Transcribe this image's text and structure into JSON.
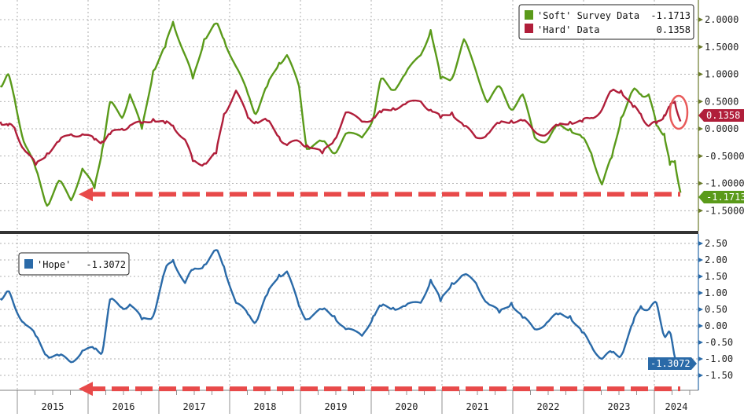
{
  "chart_data": [
    {
      "type": "line",
      "panel": "top",
      "ylim": [
        -1.75,
        2.25
      ],
      "yticks": [
        "2.0000",
        "1.5000",
        "1.0000",
        "0.5000",
        "0.0000",
        "-0.5000",
        "-1.0000",
        "-1.5000"
      ],
      "ytick_values": [
        2.0,
        1.5,
        1.0,
        0.5,
        0.0,
        -0.5,
        -1.0,
        -1.5
      ],
      "grid": true,
      "legend_placement": "top-right",
      "x": [
        2014.76,
        2014.87,
        2014.96,
        2015.09,
        2015.26,
        2015.42,
        2015.59,
        2015.76,
        2015.92,
        2016.09,
        2016.2,
        2016.31,
        2016.48,
        2016.59,
        2016.76,
        2016.92,
        2017.09,
        2017.2,
        2017.37,
        2017.48,
        2017.64,
        2017.81,
        2017.92,
        2018.09,
        2018.26,
        2018.37,
        2018.53,
        2018.7,
        2018.81,
        2018.98,
        2019.09,
        2019.31,
        2019.48,
        2019.64,
        2019.87,
        2020.03,
        2020.14,
        2020.31,
        2020.48,
        2020.7,
        2020.84,
        2020.98,
        2021.14,
        2021.31,
        2021.48,
        2021.64,
        2021.81,
        2021.98,
        2022.14,
        2022.31,
        2022.48,
        2022.64,
        2022.81,
        2022.98,
        2023.11,
        2023.26,
        2023.4,
        2023.53,
        2023.7,
        2023.81,
        2023.92,
        2024.03,
        2024.14,
        2024.22,
        2024.29,
        2024.37
      ],
      "series": [
        {
          "name": "'Soft' Survey Data",
          "last_value": "-1.1713",
          "color": "#5a9a1a",
          "values": [
            0.78,
            1.0,
            0.56,
            -0.23,
            -0.73,
            -1.41,
            -0.95,
            -1.31,
            -0.73,
            -1.09,
            -0.37,
            0.49,
            0.2,
            0.63,
            0.0,
            1.06,
            1.5,
            1.96,
            1.35,
            0.92,
            1.64,
            1.93,
            1.64,
            1.14,
            0.63,
            0.27,
            0.78,
            1.21,
            1.35,
            0.78,
            -0.37,
            -0.23,
            -0.45,
            -0.09,
            -0.16,
            0.2,
            0.92,
            0.71,
            1.0,
            1.35,
            1.81,
            0.92,
            0.92,
            1.64,
            1.06,
            0.49,
            0.78,
            0.35,
            0.63,
            -0.16,
            -0.23,
            0.06,
            0.0,
            -0.16,
            -0.45,
            -1.02,
            -0.52,
            0.2,
            0.71,
            0.63,
            0.63,
            0.06,
            -0.09,
            -0.66,
            -0.59,
            -1.1713
          ]
        },
        {
          "name": "'Hard' Data",
          "last_value": "0.1358",
          "color": "#b01e3a",
          "values": [
            0.13,
            0.06,
            0.02,
            -0.37,
            -0.66,
            -0.45,
            -0.23,
            -0.1,
            -0.1,
            -0.2,
            -0.23,
            -0.1,
            0.0,
            0.06,
            0.1,
            0.18,
            0.1,
            0.06,
            -0.2,
            -0.59,
            -0.64,
            -0.45,
            0.27,
            0.7,
            0.2,
            0.13,
            0.15,
            -0.15,
            -0.3,
            -0.23,
            -0.3,
            -0.45,
            -0.2,
            0.3,
            0.13,
            0.2,
            0.3,
            0.38,
            0.45,
            0.5,
            0.35,
            0.2,
            0.3,
            0.05,
            -0.16,
            -0.1,
            0.1,
            0.15,
            0.15,
            -0.05,
            -0.1,
            0.06,
            0.13,
            0.13,
            0.2,
            0.35,
            0.7,
            0.7,
            0.4,
            0.27,
            0.05,
            0.1,
            0.25,
            0.4,
            0.5,
            0.1358
          ]
        }
      ],
      "annotations": {
        "dashed_arrow_level": -1.1713,
        "circled_series": "'Hard' Data"
      }
    },
    {
      "type": "line",
      "panel": "bottom",
      "ylim": [
        -1.85,
        2.75
      ],
      "yticks": [
        "2.50",
        "2.00",
        "1.50",
        "1.00",
        "0.50",
        "0.00",
        "-0.50",
        "-1.00",
        "-1.50"
      ],
      "ytick_values": [
        2.5,
        2.0,
        1.5,
        1.0,
        0.5,
        0.0,
        -0.5,
        -1.0,
        -1.5
      ],
      "grid": true,
      "legend_placement": "top-left",
      "series": [
        {
          "name": "'Hope'",
          "last_value": "-1.3072",
          "color": "#2a6aa8",
          "values": [
            0.83,
            1.05,
            0.6,
            0.1,
            -0.3,
            -0.9,
            -0.9,
            -1.1,
            -0.75,
            -0.7,
            -0.8,
            0.8,
            0.55,
            0.65,
            0.2,
            0.3,
            1.7,
            2.0,
            1.3,
            1.7,
            1.85,
            2.3,
            1.8,
            0.7,
            0.35,
            0.12,
            0.95,
            1.55,
            1.65,
            0.6,
            0.2,
            0.5,
            0.3,
            -0.1,
            -0.3,
            0.3,
            0.6,
            0.55,
            0.6,
            0.7,
            1.4,
            0.75,
            1.3,
            1.55,
            1.3,
            0.7,
            0.4,
            0.7,
            0.25,
            -0.1,
            0.1,
            0.35,
            0.3,
            -0.2,
            -0.6,
            -1.0,
            -0.8,
            -0.9,
            0.1,
            0.6,
            0.5,
            0.7,
            -0.3,
            -0.2,
            -0.95,
            -1.3072
          ]
        }
      ],
      "annotations": {
        "dashed_arrow_level": -1.55
      }
    }
  ],
  "x_axis": {
    "labels": [
      "2015",
      "2016",
      "2017",
      "2018",
      "2019",
      "2020",
      "2021",
      "2022",
      "2023",
      "2024"
    ]
  },
  "colors": {
    "annotation": "#e84a4a",
    "grid": "#888888",
    "separator": "#333333"
  }
}
